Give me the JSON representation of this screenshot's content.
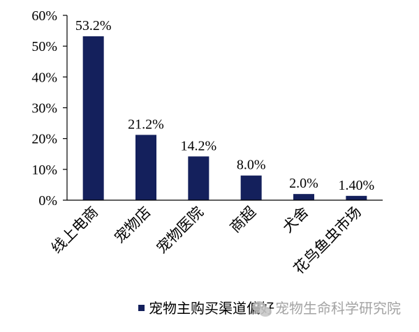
{
  "chart_data": {
    "type": "bar",
    "categories": [
      "线上电商",
      "宠物店",
      "宠物医院",
      "商超",
      "犬舍",
      "花鸟鱼虫市场"
    ],
    "values": [
      53.2,
      21.2,
      14.2,
      8.0,
      2.0,
      1.4
    ],
    "data_labels": [
      "53.2%",
      "21.2%",
      "14.2%",
      "8.0%",
      "2.0%",
      "1.40%"
    ],
    "series": [
      {
        "name": "宠物主购买渠道偏好",
        "values": [
          53.2,
          21.2,
          14.2,
          8.0,
          2.0,
          1.4
        ]
      }
    ],
    "yticks": [
      "0%",
      "10%",
      "20%",
      "30%",
      "40%",
      "50%",
      "60%"
    ],
    "ylim": [
      0,
      60
    ],
    "unit": "%",
    "grid": false,
    "legend_position": "bottom",
    "bar_color": "#14205c"
  },
  "watermark": {
    "text": "宠物生命科学研究院",
    "icon": "wechat-icon"
  }
}
